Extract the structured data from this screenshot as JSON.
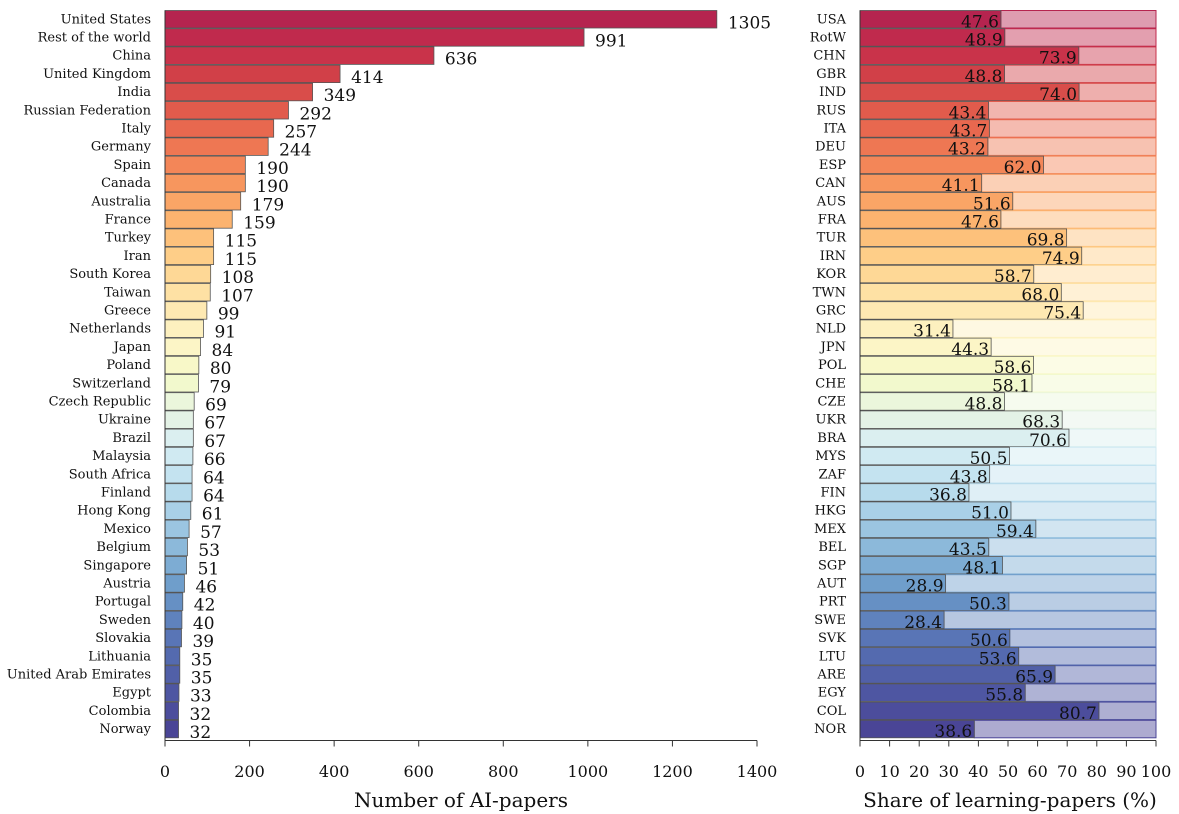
{
  "chart_data": [
    {
      "type": "bar",
      "orientation": "horizontal",
      "xlabel": "Number of AI-papers",
      "xlim": [
        0,
        1400
      ],
      "xticks": [
        "0",
        "200",
        "400",
        "600",
        "800",
        "1000",
        "1200",
        "1400"
      ],
      "categories": [
        "United States",
        "Rest of the world",
        "China",
        "United Kingdom",
        "India",
        "Russian Federation",
        "Italy",
        "Germany",
        "Spain",
        "Canada",
        "Australia",
        "France",
        "Turkey",
        "Iran",
        "South Korea",
        "Taiwan",
        "Greece",
        "Netherlands",
        "Japan",
        "Poland",
        "Switzerland",
        "Czech Republic",
        "Ukraine",
        "Brazil",
        "Malaysia",
        "South Africa",
        "Finland",
        "Hong Kong",
        "Mexico",
        "Belgium",
        "Singapore",
        "Austria",
        "Portugal",
        "Sweden",
        "Slovakia",
        "Lithuania",
        "United Arab Emirates",
        "Egypt",
        "Colombia",
        "Norway"
      ],
      "values": [
        1305,
        991,
        636,
        414,
        349,
        292,
        257,
        244,
        190,
        190,
        179,
        159,
        115,
        115,
        108,
        107,
        99,
        91,
        84,
        80,
        79,
        69,
        67,
        67,
        66,
        64,
        64,
        61,
        57,
        53,
        51,
        46,
        42,
        40,
        39,
        35,
        35,
        33,
        32,
        32
      ],
      "value_labels": [
        "1305",
        "991",
        "636",
        "414",
        "349",
        "292",
        "257",
        "244",
        "190",
        "190",
        "179",
        "159",
        "115",
        "115",
        "108",
        "107",
        "99",
        "91",
        "84",
        "80",
        "79",
        "69",
        "67",
        "67",
        "66",
        "64",
        "64",
        "61",
        "57",
        "53",
        "51",
        "46",
        "42",
        "40",
        "39",
        "35",
        "35",
        "33",
        "32",
        "32"
      ],
      "grid": false
    },
    {
      "type": "bar",
      "orientation": "horizontal",
      "stacked_to": 100,
      "xlabel": "Share of learning-papers (%)",
      "xlim": [
        0,
        100
      ],
      "xticks": [
        "0",
        "10",
        "20",
        "30",
        "40",
        "50",
        "60",
        "70",
        "80",
        "90",
        "100"
      ],
      "categories": [
        "USA",
        "RotW",
        "CHN",
        "GBR",
        "IND",
        "RUS",
        "ITA",
        "DEU",
        "ESP",
        "CAN",
        "AUS",
        "FRA",
        "TUR",
        "IRN",
        "KOR",
        "TWN",
        "GRC",
        "NLD",
        "JPN",
        "POL",
        "CHE",
        "CZE",
        "UKR",
        "BRA",
        "MYS",
        "ZAF",
        "FIN",
        "HKG",
        "MEX",
        "BEL",
        "SGP",
        "AUT",
        "PRT",
        "SWE",
        "SVK",
        "LTU",
        "ARE",
        "EGY",
        "COL",
        "NOR"
      ],
      "values": [
        47.6,
        48.9,
        73.9,
        48.8,
        74.0,
        43.4,
        43.7,
        43.2,
        62.0,
        41.1,
        51.6,
        47.6,
        69.8,
        74.9,
        58.7,
        68.0,
        75.4,
        31.4,
        44.3,
        58.6,
        58.1,
        48.8,
        68.3,
        70.6,
        50.5,
        43.8,
        36.8,
        51.0,
        59.4,
        43.5,
        48.1,
        28.9,
        50.3,
        28.4,
        50.6,
        53.6,
        65.9,
        55.8,
        80.7,
        38.6
      ],
      "value_labels": [
        "47.6",
        "48.9",
        "73.9",
        "48.8",
        "74.0",
        "43.4",
        "43.7",
        "43.2",
        "62.0",
        "41.1",
        "51.6",
        "47.6",
        "69.8",
        "74.9",
        "58.7",
        "68.0",
        "75.4",
        "31.4",
        "44.3",
        "58.6",
        "58.1",
        "48.8",
        "68.3",
        "70.6",
        "50.5",
        "43.8",
        "36.8",
        "51.0",
        "59.4",
        "43.5",
        "48.1",
        "28.9",
        "50.3",
        "28.4",
        "50.6",
        "53.6",
        "65.9",
        "55.8",
        "80.7",
        "38.6"
      ],
      "grid": false
    }
  ],
  "colors": [
    "#b5244f",
    "#c02a4d",
    "#c9334a",
    "#d14048",
    "#d94d4a",
    "#e15b4c",
    "#e8684f",
    "#ee7753",
    "#f38658",
    "#f7965e",
    "#faa566",
    "#fcb36f",
    "#fdc17b",
    "#fece88",
    "#fed896",
    "#fee1a4",
    "#fee9b2",
    "#fdf0bf",
    "#fcf5c6",
    "#f8f8c8",
    "#f2f9cd",
    "#ebf6dc",
    "#e4f2e6",
    "#dbeff0",
    "#d0eaf2",
    "#c4e3f0",
    "#b7dbec",
    "#a9d0e7",
    "#9bc5e1",
    "#8cb9da",
    "#7dacd3",
    "#6f9ecb",
    "#6690c4",
    "#5f82bd",
    "#5975b6",
    "#546aaf",
    "#5160a8",
    "#4e56a2",
    "#4c4d9c",
    "#4a4596"
  ]
}
